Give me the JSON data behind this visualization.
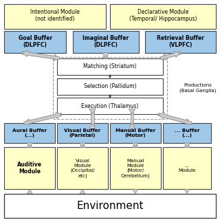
{
  "bg_color": "#ffffff",
  "yellow_color": "#ffffc8",
  "blue_color": "#a0c8e8",
  "white_color": "#ffffff",
  "border_color": "#444444",
  "arrow_fill": "#cccccc",
  "arrow_edge": "#888888",
  "title_top1": "Intentional Module\n(not identified)",
  "title_top2": "Declarative Module\n(Temporal/ Hippocampus)",
  "buf1": "Goal Buffer\n(DLPFC)",
  "buf2": "Imaginal Buffer\n(DLPFC)",
  "buf3": "Retrieval Buffer\n(VLPFC)",
  "match": "Matching (Striatum)",
  "select": "Selection (Pallidum)",
  "execute": "Execution (Thalamus)",
  "productions": "Productions\n(Basal Ganglia)",
  "abuf1": "Aural Buffer\n(...)",
  "abuf2": "Visual Buffer\n(Parietal)",
  "abuf3": "Manual Buffer\n(Motor)",
  "abuf4": "... Buffer\n(...)",
  "mod1": "Auditive\nModule",
  "mod2": "Visual\nModule\n(Occipital/\netc)",
  "mod3": "Manual\nModule\n(Motor/\nCerebellum)",
  "mod4": "...\nModule",
  "env": "Environment"
}
